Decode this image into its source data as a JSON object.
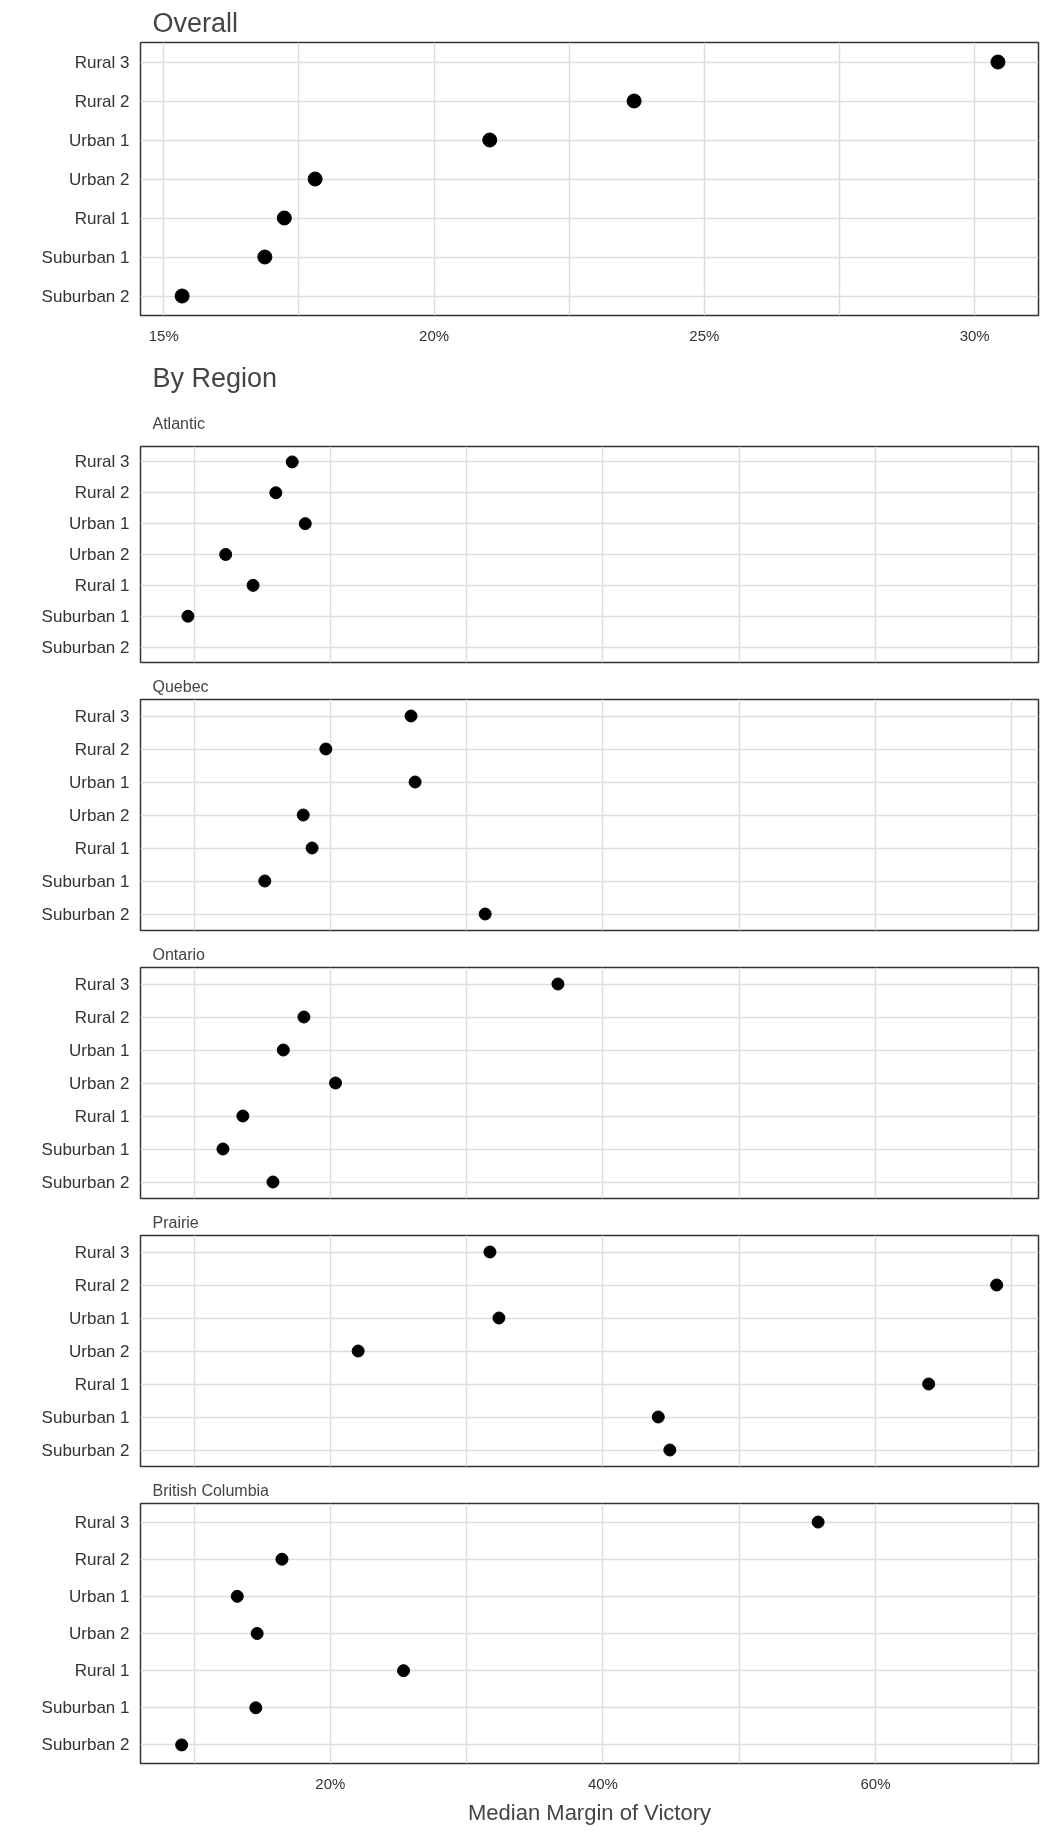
{
  "chart_data": [
    {
      "type": "scatter",
      "orientation": "horizontal",
      "title": "Overall",
      "categories": [
        "Rural 3",
        "Rural 2",
        "Urban 1",
        "Urban 2",
        "Rural 1",
        "Suburban 1",
        "Suburban 2"
      ],
      "values": [
        30.43,
        23.7,
        21.03,
        17.8,
        17.23,
        16.87,
        15.34
      ],
      "color": "#000000",
      "marker": "circle",
      "xlim": [
        14.57,
        31.18
      ],
      "xticks": [
        {
          "value": 15,
          "label": "15%"
        },
        {
          "value": 17.5,
          "label": null
        },
        {
          "value": 20,
          "label": "20%"
        },
        {
          "value": 22.5,
          "label": null
        },
        {
          "value": 25,
          "label": "25%"
        },
        {
          "value": 27.5,
          "label": null
        },
        {
          "value": 30,
          "label": "30%"
        }
      ],
      "grid": true
    },
    {
      "type": "scatter",
      "orientation": "horizontal",
      "title": "By Region",
      "subtitle": "Atlantic",
      "categories": [
        "Rural 3",
        "Rural 2",
        "Urban 1",
        "Urban 2",
        "Rural 1",
        "Suburban 1",
        "Suburban 2"
      ],
      "values": [
        17.2,
        16.0,
        18.16,
        12.32,
        14.33,
        9.55,
        null
      ],
      "color": "#000000",
      "marker": "circle",
      "xlim": [
        6.07,
        71.96
      ],
      "xticks": [
        {
          "value": 10,
          "label": null
        },
        {
          "value": 20,
          "label": null
        },
        {
          "value": 30,
          "label": null
        },
        {
          "value": 40,
          "label": null
        },
        {
          "value": 50,
          "label": null
        },
        {
          "value": 60,
          "label": null
        },
        {
          "value": 70,
          "label": null
        }
      ],
      "grid": true,
      "tick_labels": "y"
    },
    {
      "type": "scatter",
      "orientation": "horizontal",
      "title": "Quebec",
      "categories": [
        "Rural 3",
        "Rural 2",
        "Urban 1",
        "Urban 2",
        "Rural 1",
        "Suburban 1",
        "Suburban 2"
      ],
      "values": [
        25.92,
        19.67,
        26.22,
        18.01,
        18.66,
        15.19,
        31.36
      ],
      "color": "#000000",
      "marker": "circle",
      "xlim": [
        6.07,
        71.96
      ],
      "xticks": [
        {
          "value": 10,
          "label": null
        },
        {
          "value": 20,
          "label": null
        },
        {
          "value": 30,
          "label": null
        },
        {
          "value": 40,
          "label": null
        },
        {
          "value": 50,
          "label": null
        },
        {
          "value": 60,
          "label": null
        },
        {
          "value": 70,
          "label": null
        }
      ],
      "grid": true,
      "tick_labels": "y"
    },
    {
      "type": "scatter",
      "orientation": "horizontal",
      "title": "Ontario",
      "categories": [
        "Rural 3",
        "Rural 2",
        "Urban 1",
        "Urban 2",
        "Rural 1",
        "Suburban 1",
        "Suburban 2"
      ],
      "values": [
        36.7,
        18.06,
        16.55,
        20.38,
        13.58,
        12.12,
        15.79
      ],
      "color": "#000000",
      "marker": "circle",
      "xlim": [
        6.07,
        71.96
      ],
      "xticks": [
        {
          "value": 10,
          "label": null
        },
        {
          "value": 20,
          "label": null
        },
        {
          "value": 30,
          "label": null
        },
        {
          "value": 40,
          "label": null
        },
        {
          "value": 50,
          "label": null
        },
        {
          "value": 60,
          "label": null
        },
        {
          "value": 70,
          "label": null
        }
      ],
      "grid": true,
      "tick_labels": "y"
    },
    {
      "type": "scatter",
      "orientation": "horizontal",
      "title": "Prairie",
      "categories": [
        "Rural 3",
        "Rural 2",
        "Urban 1",
        "Urban 2",
        "Rural 1",
        "Suburban 1",
        "Suburban 2"
      ],
      "values": [
        31.71,
        68.89,
        32.37,
        22.04,
        63.9,
        44.06,
        44.91
      ],
      "color": "#000000",
      "marker": "circle",
      "xlim": [
        6.07,
        71.96
      ],
      "xticks": [
        {
          "value": 10,
          "label": null
        },
        {
          "value": 20,
          "label": null
        },
        {
          "value": 30,
          "label": null
        },
        {
          "value": 40,
          "label": null
        },
        {
          "value": 50,
          "label": null
        },
        {
          "value": 60,
          "label": null
        },
        {
          "value": 70,
          "label": null
        }
      ],
      "grid": true,
      "tick_labels": "y"
    },
    {
      "type": "scatter",
      "orientation": "horizontal",
      "title": "British Columbia",
      "xlabel": "Median Margin of Victory",
      "categories": [
        "Rural 3",
        "Rural 2",
        "Urban 1",
        "Urban 2",
        "Rural 1",
        "Suburban 1",
        "Suburban 2"
      ],
      "values": [
        55.79,
        16.45,
        13.17,
        14.63,
        25.37,
        14.53,
        9.09
      ],
      "color": "#000000",
      "marker": "circle",
      "xlim": [
        6.07,
        71.96
      ],
      "xticks": [
        {
          "value": 10,
          "label": null
        },
        {
          "value": 20,
          "label": "20%"
        },
        {
          "value": 30,
          "label": null
        },
        {
          "value": 40,
          "label": "40%"
        },
        {
          "value": 50,
          "label": null
        },
        {
          "value": 60,
          "label": "60%"
        },
        {
          "value": 70,
          "label": null
        }
      ],
      "grid": true
    }
  ]
}
